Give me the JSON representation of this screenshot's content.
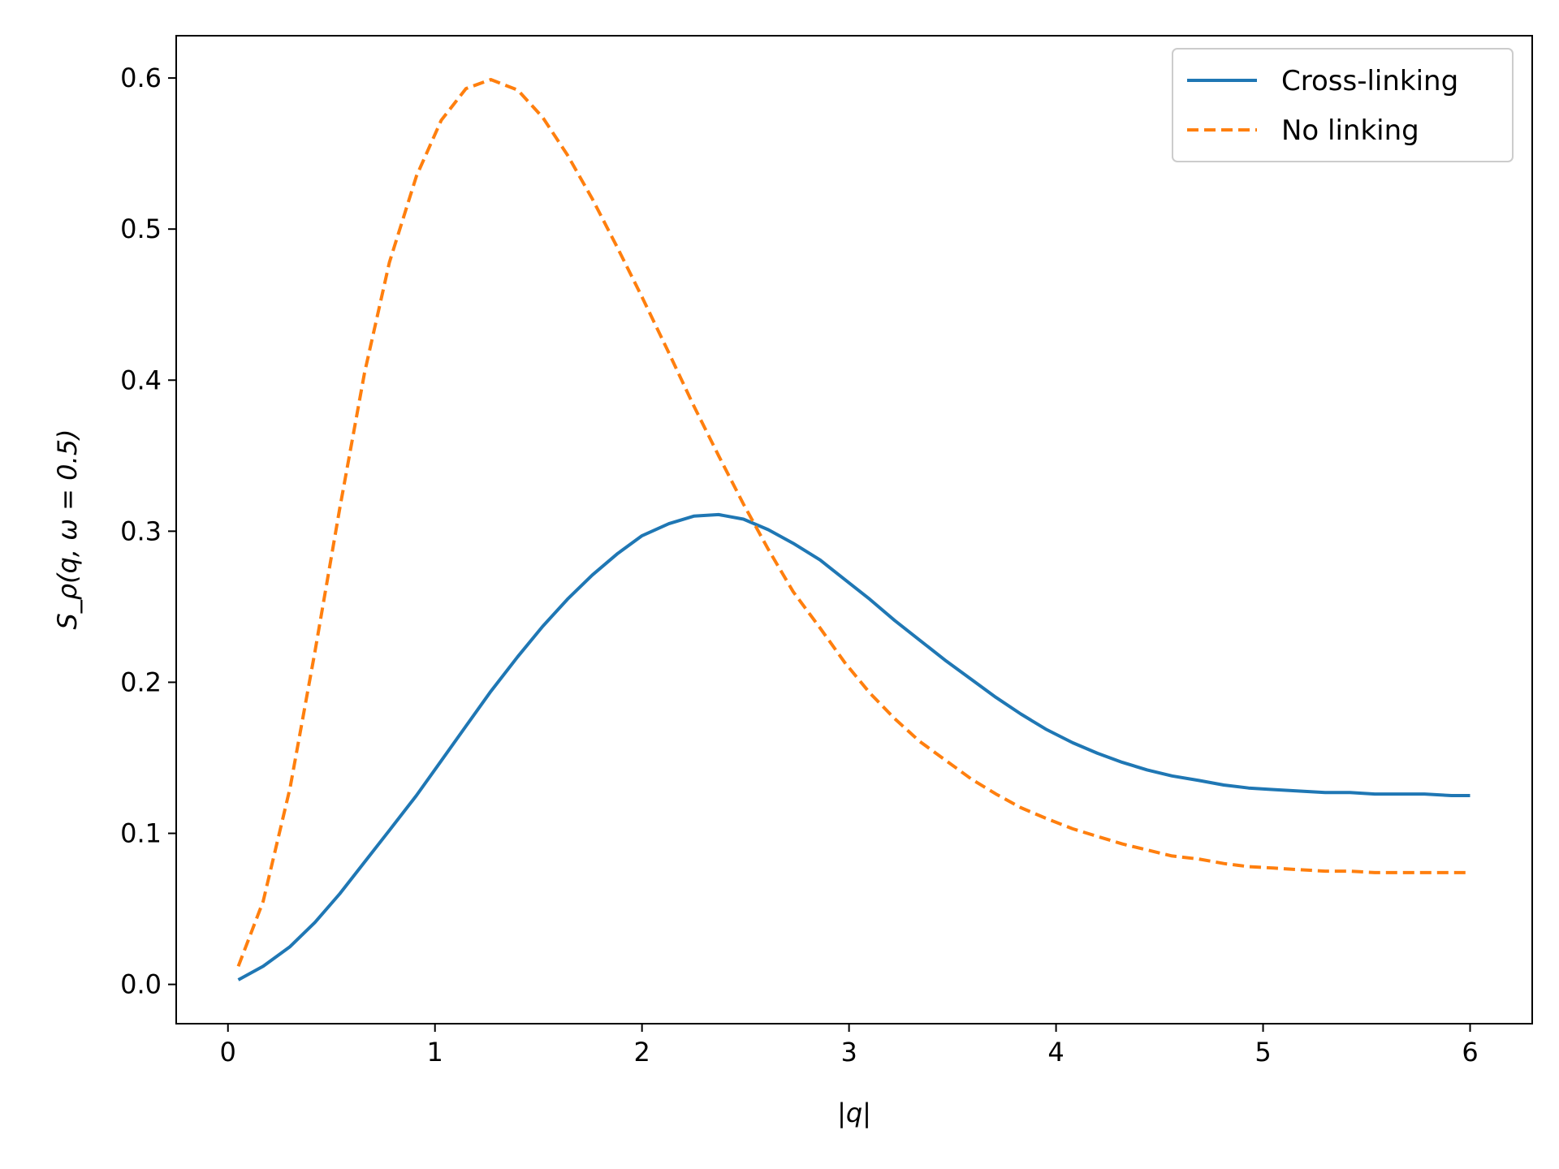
{
  "chart_data": {
    "type": "line",
    "xlabel": "|q|",
    "ylabel": "S_ρ(q, ω = 0.5)",
    "xlim": [
      -0.25,
      6.3
    ],
    "ylim": [
      -0.026,
      0.628
    ],
    "xticks": [
      0,
      1,
      2,
      3,
      4,
      5,
      6
    ],
    "yticks": [
      0.0,
      0.1,
      0.2,
      0.3,
      0.4,
      0.5,
      0.6
    ],
    "xtick_labels": [
      "0",
      "1",
      "2",
      "3",
      "4",
      "5",
      "6"
    ],
    "ytick_labels": [
      "0.0",
      "0.1",
      "0.2",
      "0.3",
      "0.4",
      "0.5",
      "0.6"
    ],
    "grid": false,
    "legend_position": "top-right",
    "series": [
      {
        "name": "Cross-linking",
        "color": "#1f77b4",
        "style": "solid",
        "x": [
          0.05,
          0.17,
          0.3,
          0.42,
          0.54,
          0.66,
          0.78,
          0.91,
          1.03,
          1.15,
          1.27,
          1.4,
          1.52,
          1.64,
          1.76,
          1.88,
          2.0,
          2.13,
          2.25,
          2.37,
          2.49,
          2.61,
          2.73,
          2.86,
          2.98,
          3.1,
          3.22,
          3.34,
          3.47,
          3.59,
          3.71,
          3.83,
          3.95,
          4.08,
          4.2,
          4.32,
          4.44,
          4.56,
          4.69,
          4.81,
          4.93,
          5.05,
          5.17,
          5.3,
          5.42,
          5.54,
          5.66,
          5.78,
          5.91,
          6.0
        ],
        "y": [
          0.003,
          0.012,
          0.025,
          0.041,
          0.06,
          0.081,
          0.102,
          0.125,
          0.148,
          0.171,
          0.194,
          0.217,
          0.237,
          0.255,
          0.271,
          0.285,
          0.297,
          0.305,
          0.31,
          0.311,
          0.308,
          0.301,
          0.292,
          0.281,
          0.268,
          0.255,
          0.241,
          0.228,
          0.214,
          0.202,
          0.19,
          0.179,
          0.169,
          0.16,
          0.153,
          0.147,
          0.142,
          0.138,
          0.135,
          0.132,
          0.13,
          0.129,
          0.128,
          0.127,
          0.127,
          0.126,
          0.126,
          0.126,
          0.125,
          0.125
        ]
      },
      {
        "name": "No linking",
        "color": "#ff7f0e",
        "style": "dashed",
        "x": [
          0.05,
          0.17,
          0.3,
          0.42,
          0.54,
          0.66,
          0.78,
          0.91,
          1.03,
          1.15,
          1.27,
          1.4,
          1.52,
          1.64,
          1.76,
          1.88,
          2.0,
          2.13,
          2.25,
          2.37,
          2.49,
          2.61,
          2.73,
          2.86,
          2.98,
          3.1,
          3.22,
          3.34,
          3.47,
          3.59,
          3.71,
          3.83,
          3.95,
          4.08,
          4.2,
          4.32,
          4.44,
          4.56,
          4.69,
          4.81,
          4.93,
          5.05,
          5.17,
          5.3,
          5.42,
          5.54,
          5.66,
          5.78,
          5.91,
          6.0
        ],
        "y": [
          0.012,
          0.055,
          0.13,
          0.22,
          0.315,
          0.405,
          0.478,
          0.535,
          0.572,
          0.593,
          0.599,
          0.592,
          0.574,
          0.549,
          0.52,
          0.488,
          0.455,
          0.418,
          0.383,
          0.35,
          0.318,
          0.288,
          0.26,
          0.236,
          0.213,
          0.193,
          0.176,
          0.161,
          0.148,
          0.136,
          0.126,
          0.117,
          0.11,
          0.103,
          0.098,
          0.093,
          0.089,
          0.085,
          0.083,
          0.08,
          0.078,
          0.077,
          0.076,
          0.075,
          0.075,
          0.074,
          0.074,
          0.074,
          0.074,
          0.074
        ]
      }
    ]
  }
}
